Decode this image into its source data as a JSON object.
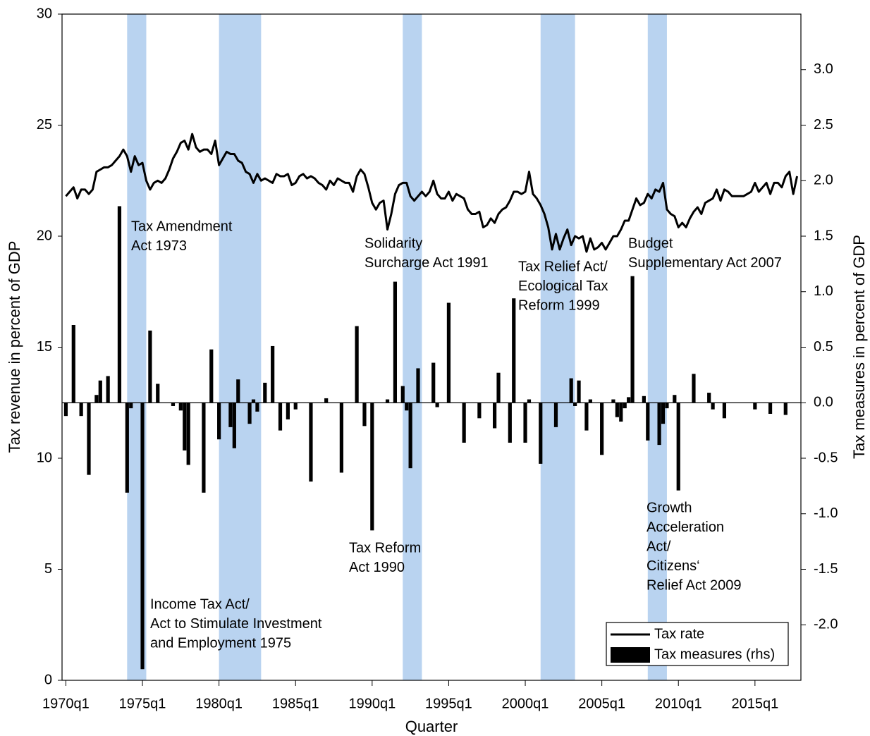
{
  "chart_data": {
    "type": "combo",
    "x_label": "Quarter",
    "y_label": "Tax revenue in percent of GDP",
    "y2_label": "Tax measures in percent of GDP",
    "xlim": [
      "1969q4",
      "2018q1"
    ],
    "xticks": [
      "1970q1",
      "1975q1",
      "1980q1",
      "1985q1",
      "1990q1",
      "1995q1",
      "2000q1",
      "2005q1",
      "2010q1",
      "2015q1"
    ],
    "ylim": [
      0,
      30
    ],
    "yticks": [
      0,
      5,
      10,
      15,
      20,
      25,
      30
    ],
    "y2lim": [
      -2.5,
      3.5
    ],
    "y2ticks": [
      {
        "value": -2,
        "label": "-2.0"
      },
      {
        "value": -1.5,
        "label": "-1.5"
      },
      {
        "value": -1,
        "label": "-1.0"
      },
      {
        "value": -0.5,
        "label": "-0.5"
      },
      {
        "value": 0,
        "label": "0.0"
      },
      {
        "value": 0.5,
        "label": "0.5"
      },
      {
        "value": 1,
        "label": "1.0"
      },
      {
        "value": 1.5,
        "label": "1.5"
      },
      {
        "value": 2,
        "label": "2.0"
      },
      {
        "value": 2.5,
        "label": "2.5"
      },
      {
        "value": 3,
        "label": "3.0"
      }
    ],
    "legend": "lower right",
    "shade_color": "#b9d3f0",
    "shaded_periods": [
      [
        "1974q1",
        "1975q1"
      ],
      [
        "1980q1",
        "1982q3"
      ],
      [
        "1992q1",
        "1993q1"
      ],
      [
        "2001q1",
        "2003q1"
      ],
      [
        "2008q1",
        "2009q1"
      ]
    ],
    "series": [
      {
        "name": "Tax rate",
        "type": "line",
        "color": "#000000",
        "x": [
          "1970q1",
          "1970q2",
          "1970q3",
          "1970q4",
          "1971q1",
          "1971q2",
          "1971q3",
          "1971q4",
          "1972q1",
          "1972q2",
          "1972q3",
          "1972q4",
          "1973q1",
          "1973q2",
          "1973q3",
          "1973q4",
          "1974q1",
          "1974q2",
          "1974q3",
          "1974q4",
          "1975q1",
          "1975q2",
          "1975q3",
          "1975q4",
          "1976q1",
          "1976q2",
          "1976q3",
          "1976q4",
          "1977q1",
          "1977q2",
          "1977q3",
          "1977q4",
          "1978q1",
          "1978q2",
          "1978q3",
          "1978q4",
          "1979q1",
          "1979q2",
          "1979q3",
          "1979q4",
          "1980q1",
          "1980q2",
          "1980q3",
          "1980q4",
          "1981q1",
          "1981q2",
          "1981q3",
          "1981q4",
          "1982q1",
          "1982q2",
          "1982q3",
          "1982q4",
          "1983q1",
          "1983q2",
          "1983q3",
          "1983q4",
          "1984q1",
          "1984q2",
          "1984q3",
          "1984q4",
          "1985q1",
          "1985q2",
          "1985q3",
          "1985q4",
          "1986q1",
          "1986q2",
          "1986q3",
          "1986q4",
          "1987q1",
          "1987q2",
          "1987q3",
          "1987q4",
          "1988q1",
          "1988q2",
          "1988q3",
          "1988q4",
          "1989q1",
          "1989q2",
          "1989q3",
          "1989q4",
          "1990q1",
          "1990q2",
          "1990q3",
          "1990q4",
          "1991q1",
          "1991q2",
          "1991q3",
          "1991q4",
          "1992q1",
          "1992q2",
          "1992q3",
          "1992q4",
          "1993q1",
          "1993q2",
          "1993q3",
          "1993q4",
          "1994q1",
          "1994q2",
          "1994q3",
          "1994q4",
          "1995q1",
          "1995q2",
          "1995q3",
          "1995q4",
          "1996q1",
          "1996q2",
          "1996q3",
          "1996q4",
          "1997q1",
          "1997q2",
          "1997q3",
          "1997q4",
          "1998q1",
          "1998q2",
          "1998q3",
          "1998q4",
          "1999q1",
          "1999q2",
          "1999q3",
          "1999q4",
          "2000q1",
          "2000q2",
          "2000q3",
          "2000q4",
          "2001q1",
          "2001q2",
          "2001q3",
          "2001q4",
          "2002q1",
          "2002q2",
          "2002q3",
          "2002q4",
          "2003q1",
          "2003q2",
          "2003q3",
          "2003q4",
          "2004q1",
          "2004q2",
          "2004q3",
          "2004q4",
          "2005q1",
          "2005q2",
          "2005q3",
          "2005q4",
          "2006q1",
          "2006q2",
          "2006q3",
          "2006q4",
          "2007q1",
          "2007q2",
          "2007q3",
          "2007q4",
          "2008q1",
          "2008q2",
          "2008q3",
          "2008q4",
          "2009q1",
          "2009q2",
          "2009q3",
          "2009q4",
          "2010q1",
          "2010q2",
          "2010q3",
          "2010q4",
          "2011q1",
          "2011q2",
          "2011q3",
          "2011q4",
          "2012q1",
          "2012q2",
          "2012q3",
          "2012q4",
          "2013q1",
          "2013q2",
          "2013q3",
          "2013q4",
          "2014q1",
          "2014q2",
          "2014q3",
          "2014q4",
          "2015q1",
          "2015q2",
          "2015q3",
          "2015q4",
          "2016q1",
          "2016q2",
          "2016q3",
          "2016q4",
          "2017q1",
          "2017q2",
          "2017q3",
          "2017q4"
        ],
        "values": [
          21.8,
          22.0,
          22.2,
          21.7,
          22.1,
          22.1,
          21.9,
          22.1,
          22.9,
          23.0,
          23.1,
          23.1,
          23.2,
          23.4,
          23.6,
          23.9,
          23.6,
          22.9,
          23.6,
          23.2,
          23.3,
          22.5,
          22.1,
          22.4,
          22.5,
          22.4,
          22.6,
          23.0,
          23.5,
          23.8,
          24.2,
          24.3,
          23.9,
          24.6,
          24.0,
          23.8,
          23.9,
          23.9,
          23.7,
          24.3,
          23.2,
          23.5,
          23.8,
          23.7,
          23.7,
          23.4,
          23.3,
          22.9,
          22.8,
          22.4,
          22.8,
          22.5,
          22.6,
          22.5,
          22.4,
          22.8,
          22.7,
          22.7,
          22.8,
          22.3,
          22.4,
          22.7,
          22.8,
          22.6,
          22.7,
          22.6,
          22.4,
          22.3,
          22.1,
          22.5,
          22.3,
          22.6,
          22.5,
          22.4,
          22.4,
          22.0,
          22.7,
          23.0,
          22.8,
          22.2,
          21.5,
          21.2,
          21.5,
          21.6,
          20.3,
          21.0,
          21.9,
          22.3,
          22.4,
          22.4,
          21.8,
          21.6,
          21.8,
          22.0,
          21.8,
          22.0,
          22.5,
          21.9,
          21.7,
          21.7,
          22.0,
          21.6,
          21.9,
          21.8,
          21.7,
          21.2,
          21.0,
          21.0,
          21.1,
          20.4,
          20.5,
          20.8,
          20.6,
          21.0,
          21.2,
          21.3,
          21.6,
          22.0,
          22.0,
          21.9,
          22.0,
          22.9,
          21.9,
          21.7,
          21.4,
          21.0,
          20.4,
          19.4,
          20.1,
          19.4,
          19.9,
          20.3,
          19.6,
          20.0,
          19.9,
          20.0,
          19.3,
          19.9,
          19.4,
          19.5,
          19.7,
          19.4,
          19.7,
          20.0,
          20.0,
          20.3,
          20.7,
          20.7,
          21.2,
          21.7,
          21.4,
          21.5,
          21.9,
          21.7,
          22.1,
          22.0,
          22.4,
          21.2,
          21.0,
          20.9,
          20.4,
          20.6,
          20.4,
          20.8,
          21.1,
          21.3,
          21.0,
          21.5,
          21.6,
          21.7,
          22.1,
          21.6,
          22.1,
          22.0,
          21.8,
          21.8,
          21.8,
          21.8,
          21.9,
          22.0,
          22.4,
          22.0,
          22.2,
          22.4,
          21.9,
          22.4,
          22.4,
          22.2,
          22.7,
          22.9,
          21.9,
          22.7
        ]
      },
      {
        "name": "Tax measures (rhs)",
        "type": "bar",
        "axis": "y2",
        "color": "#000000",
        "x": [
          "1970q1",
          "1970q3",
          "1971q1",
          "1971q3",
          "1972q1",
          "1972q2",
          "1972q4",
          "1973q3",
          "1974q1",
          "1974q2",
          "1975q1",
          "1975q3",
          "1976q1",
          "1977q1",
          "1977q3",
          "1977q4",
          "1978q1",
          "1979q1",
          "1979q3",
          "1980q1",
          "1980q4",
          "1981q1",
          "1981q2",
          "1982q1",
          "1982q2",
          "1982q3",
          "1983q1",
          "1983q3",
          "1984q1",
          "1984q3",
          "1985q1",
          "1986q1",
          "1987q1",
          "1988q1",
          "1989q1",
          "1989q3",
          "1990q1",
          "1991q1",
          "1991q3",
          "1992q1",
          "1992q2",
          "1992q3",
          "1993q1",
          "1994q1",
          "1994q2",
          "1995q1",
          "1996q1",
          "1997q1",
          "1998q1",
          "1998q2",
          "1999q1",
          "1999q2",
          "2000q1",
          "2000q2",
          "2001q1",
          "2002q1",
          "2003q1",
          "2003q2",
          "2003q3",
          "2004q1",
          "2004q2",
          "2005q1",
          "2005q4",
          "2006q1",
          "2006q2",
          "2006q3",
          "2006q4",
          "2007q1",
          "2007q4",
          "2008q1",
          "2008q4",
          "2009q1",
          "2009q2",
          "2009q4",
          "2010q1",
          "2011q1",
          "2012q1",
          "2012q2",
          "2013q1",
          "2015q1",
          "2016q1",
          "2017q1"
        ],
        "values": [
          -0.12,
          0.7,
          -0.12,
          -0.65,
          0.07,
          0.2,
          0.24,
          1.77,
          -0.81,
          -0.05,
          -2.4,
          0.65,
          0.17,
          -0.03,
          -0.07,
          -0.43,
          -0.56,
          -0.81,
          0.48,
          -0.33,
          -0.22,
          -0.41,
          0.21,
          -0.19,
          0.03,
          -0.08,
          0.18,
          0.51,
          -0.25,
          -0.15,
          -0.06,
          -0.71,
          0.04,
          -0.63,
          0.69,
          -0.21,
          -1.15,
          0.03,
          1.09,
          0.15,
          -0.07,
          -0.59,
          0.31,
          0.36,
          -0.04,
          0.9,
          -0.36,
          -0.14,
          -0.23,
          0.27,
          -0.36,
          0.94,
          -0.36,
          0.03,
          -0.55,
          -0.22,
          0.22,
          -0.03,
          0.2,
          -0.25,
          0.03,
          -0.47,
          0.03,
          -0.13,
          -0.17,
          -0.05,
          0.05,
          1.14,
          0.06,
          -0.34,
          -0.38,
          -0.19,
          -0.05,
          0.07,
          -0.79,
          0.26,
          0.09,
          -0.06,
          -0.14,
          -0.06,
          -0.1,
          -0.11
        ]
      }
    ],
    "annotations": [
      {
        "lines": [
          "Tax Amendment",
          "Act 1973"
        ]
      },
      {
        "lines": [
          "Income Tax Act/",
          "Act to Stimulate Investment",
          "and Employment 1975"
        ]
      },
      {
        "lines": [
          "Tax Reform",
          "Act 1990"
        ]
      },
      {
        "lines": [
          "Solidarity",
          "Surcharge Act 1991"
        ]
      },
      {
        "lines": [
          "Tax Relief Act/",
          "Ecological Tax",
          "Reform 1999"
        ]
      },
      {
        "lines": [
          "Budget",
          "Supplementary Act 2007"
        ]
      },
      {
        "lines": [
          "Growth",
          "Acceleration",
          "Act/",
          "Citizens‘",
          "Relief Act 2009"
        ]
      }
    ]
  }
}
